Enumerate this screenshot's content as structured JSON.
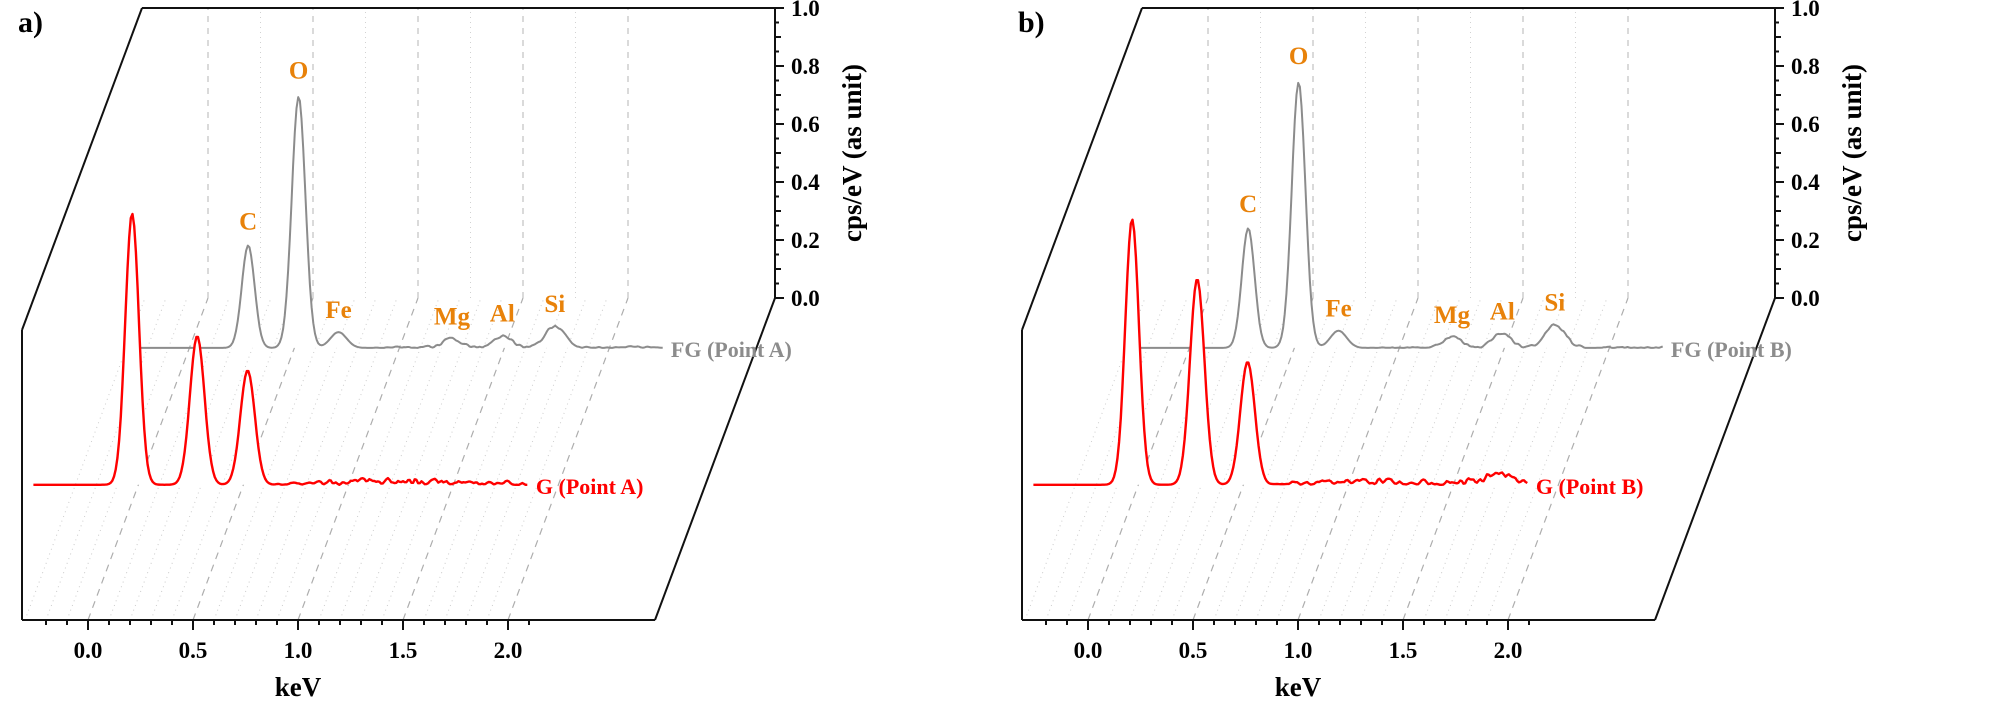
{
  "chart_data": [
    {
      "type": "line",
      "panel_label": "a)",
      "xlabel": "keV",
      "ylabel": "cps/eV (as unit)",
      "xlim": [
        -0.5,
        2.25
      ],
      "ylim": [
        0.0,
        1.0
      ],
      "x_ticks": [
        0.0,
        0.5,
        1.0,
        1.5,
        2.0
      ],
      "x_tick_labels": [
        "0.0",
        "0.5",
        "1.0",
        "1.5",
        "2.0"
      ],
      "y_ticks": [
        0.0,
        0.2,
        0.4,
        0.6,
        0.8,
        1.0
      ],
      "y_tick_labels": [
        "0.0",
        "0.2",
        "0.4",
        "0.6",
        "0.8",
        "1.0"
      ],
      "element_label_color": "#e8820a",
      "series": [
        {
          "name": "FG (Point A)",
          "color": "#8c8c8c",
          "depth": 0.845,
          "xmin": -0.25,
          "xmax": 2.25,
          "noise": 0.007,
          "noise_from": 0.85,
          "seed": 3,
          "peaks": [
            {
              "element": "C",
              "center": 0.28,
              "height": 0.36,
              "width": 0.03
            },
            {
              "element": "O",
              "center": 0.52,
              "height": 0.88,
              "width": 0.032
            },
            {
              "element": "Fe",
              "center": 0.71,
              "height": 0.055,
              "width": 0.038
            },
            {
              "element": "Mg",
              "center": 1.25,
              "height": 0.032,
              "width": 0.045
            },
            {
              "element": "Al",
              "center": 1.49,
              "height": 0.042,
              "width": 0.045
            },
            {
              "element": "Si",
              "center": 1.74,
              "height": 0.075,
              "width": 0.048
            }
          ]
        },
        {
          "name": "G (Point A)",
          "color": "#ff0000",
          "depth": 0.42,
          "xmin": -0.5,
          "xmax": 1.85,
          "noise": 0.016,
          "noise_from": 0.62,
          "seed": 7,
          "peaks": [
            {
              "center": -0.03,
              "height": 0.95,
              "width": 0.032
            },
            {
              "center": 0.28,
              "height": 0.52,
              "width": 0.034
            },
            {
              "center": 0.52,
              "height": 0.4,
              "width": 0.034
            },
            {
              "center": 1.2,
              "height": 0.014,
              "width": 0.2
            }
          ]
        }
      ]
    },
    {
      "type": "line",
      "panel_label": "b)",
      "xlabel": "keV",
      "ylabel": "cps/eV (as unit)",
      "xlim": [
        -0.5,
        2.25
      ],
      "ylim": [
        0.0,
        1.0
      ],
      "x_ticks": [
        0.0,
        0.5,
        1.0,
        1.5,
        2.0
      ],
      "x_tick_labels": [
        "0.0",
        "0.5",
        "1.0",
        "1.5",
        "2.0"
      ],
      "y_ticks": [
        0.0,
        0.2,
        0.4,
        0.6,
        0.8,
        1.0
      ],
      "y_tick_labels": [
        "0.0",
        "0.2",
        "0.4",
        "0.6",
        "0.8",
        "1.0"
      ],
      "element_label_color": "#e8820a",
      "series": [
        {
          "name": "FG (Point B)",
          "color": "#8c8c8c",
          "depth": 0.845,
          "xmin": -0.25,
          "xmax": 2.25,
          "noise": 0.007,
          "noise_from": 0.85,
          "seed": 11,
          "peaks": [
            {
              "element": "C",
              "center": 0.28,
              "height": 0.42,
              "width": 0.03
            },
            {
              "element": "O",
              "center": 0.52,
              "height": 0.93,
              "width": 0.032
            },
            {
              "element": "Fe",
              "center": 0.71,
              "height": 0.06,
              "width": 0.038
            },
            {
              "element": "Mg",
              "center": 1.25,
              "height": 0.038,
              "width": 0.045
            },
            {
              "element": "Al",
              "center": 1.49,
              "height": 0.05,
              "width": 0.045
            },
            {
              "element": "Si",
              "center": 1.74,
              "height": 0.08,
              "width": 0.048
            }
          ]
        },
        {
          "name": "G (Point B)",
          "color": "#ff0000",
          "depth": 0.42,
          "xmin": -0.5,
          "xmax": 1.85,
          "noise": 0.016,
          "noise_from": 0.62,
          "seed": 5,
          "peaks": [
            {
              "center": -0.03,
              "height": 0.93,
              "width": 0.032
            },
            {
              "center": 0.28,
              "height": 0.72,
              "width": 0.034
            },
            {
              "center": 0.52,
              "height": 0.43,
              "width": 0.034
            },
            {
              "center": 1.1,
              "height": 0.012,
              "width": 0.15
            },
            {
              "center": 1.72,
              "height": 0.03,
              "width": 0.11
            }
          ]
        }
      ]
    }
  ]
}
